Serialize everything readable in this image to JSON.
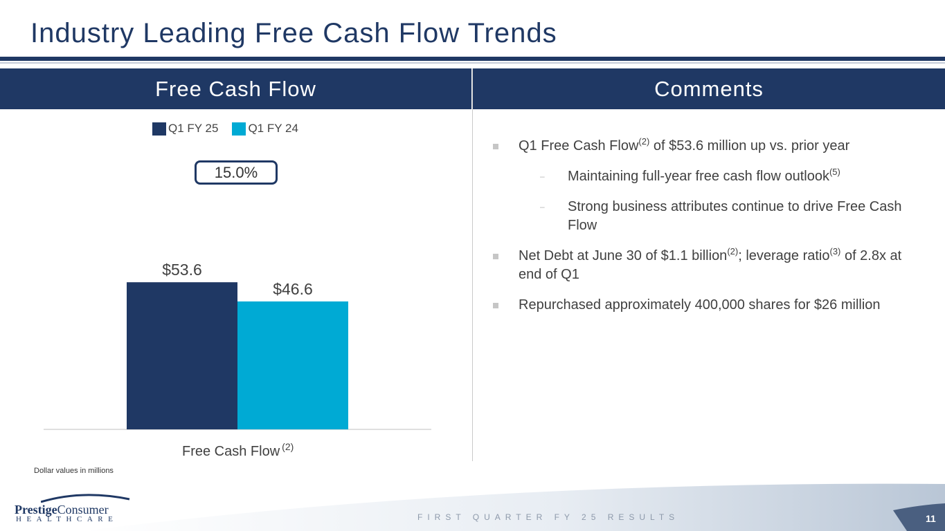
{
  "title": "Industry Leading Free Cash Flow Trends",
  "left_panel": {
    "header": "Free Cash Flow"
  },
  "right_panel": {
    "header": "Comments"
  },
  "colors": {
    "navy": "#1f3864",
    "cyan": "#00aad4"
  },
  "chart_data": {
    "type": "bar",
    "categories": [
      "Free Cash Flow"
    ],
    "category_footnote": "(2)",
    "series": [
      {
        "name": "Q1 FY 25",
        "values": [
          53.6
        ],
        "labels": [
          "$53.6"
        ],
        "color": "#1f3864"
      },
      {
        "name": "Q1 FY 24",
        "values": [
          46.6
        ],
        "labels": [
          "$46.6"
        ],
        "color": "#00aad4"
      }
    ],
    "growth_label": "15.0%",
    "legend_position": "top",
    "grid": false
  },
  "footnote": "Dollar values in millions",
  "comments": [
    {
      "level": 1,
      "text": "Q1 Free Cash Flow",
      "sup": "(2)",
      "text2": " of $53.6 million up vs. prior year"
    },
    {
      "level": 2,
      "text": "Maintaining full-year free cash flow outlook",
      "sup": "(5)",
      "text2": ""
    },
    {
      "level": 2,
      "text": "Strong business attributes continue to drive Free Cash Flow",
      "sup": "",
      "text2": ""
    },
    {
      "level": 1,
      "text": "Net Debt at June 30 of $1.1 billion",
      "sup": "(2)",
      "text2": "; leverage ratio",
      "sup2": "(3)",
      "text3": " of 2.8x at end of Q1"
    },
    {
      "level": 1,
      "text": "Repurchased approximately 400,000 shares for $26 million",
      "sup": "",
      "text2": ""
    }
  ],
  "logo": {
    "name_bold": "Prestige",
    "name_regular": "Consumer",
    "sub": "HEALTHCARE"
  },
  "footer": {
    "text": "FIRST QUARTER FY 25 RESULTS",
    "page": "11"
  }
}
